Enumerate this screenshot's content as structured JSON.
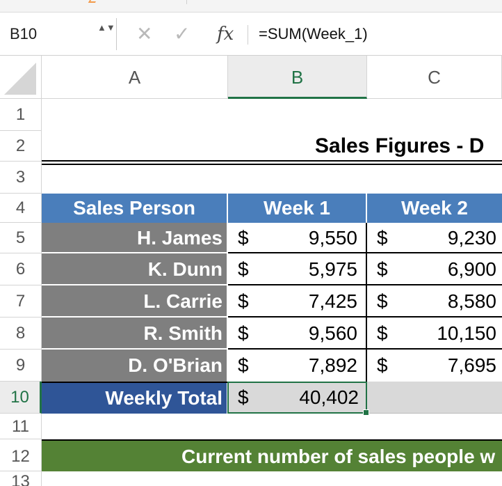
{
  "formula_bar": {
    "name_box": "B10",
    "name_box_arrows": "▲▼",
    "cancel_icon": "✕",
    "enter_icon": "✓",
    "fx_label": "fx",
    "formula": "=SUM(Week_1)"
  },
  "columns": [
    "A",
    "B",
    "C"
  ],
  "rows": [
    "1",
    "2",
    "3",
    "4",
    "5",
    "6",
    "7",
    "8",
    "9",
    "10",
    "11",
    "12",
    "13"
  ],
  "selected_cell": {
    "column": "B",
    "row": "10"
  },
  "sheet": {
    "title": "Sales Figures - D",
    "headers": [
      "Sales Person",
      "Week 1",
      "Week 2"
    ],
    "currency": "$",
    "records": [
      {
        "person": "H. James",
        "week1": "9,550",
        "week2": "9,230"
      },
      {
        "person": "K. Dunn",
        "week1": "5,975",
        "week2": "6,900"
      },
      {
        "person": "L. Carrie",
        "week1": "7,425",
        "week2": "8,580"
      },
      {
        "person": "R. Smith",
        "week1": "9,560",
        "week2": "10,150"
      },
      {
        "person": "D. O'Brian",
        "week1": "7,892",
        "week2": "7,695"
      }
    ],
    "total_label": "Weekly Total",
    "total_week1": "40,402",
    "banner": "Current number of sales people w"
  },
  "colors": {
    "header_blue": "#4a7ebb",
    "person_gray": "#7f7f7f",
    "total_navy": "#2f5597",
    "banner_green": "#548235",
    "selection_green": "#217346"
  }
}
